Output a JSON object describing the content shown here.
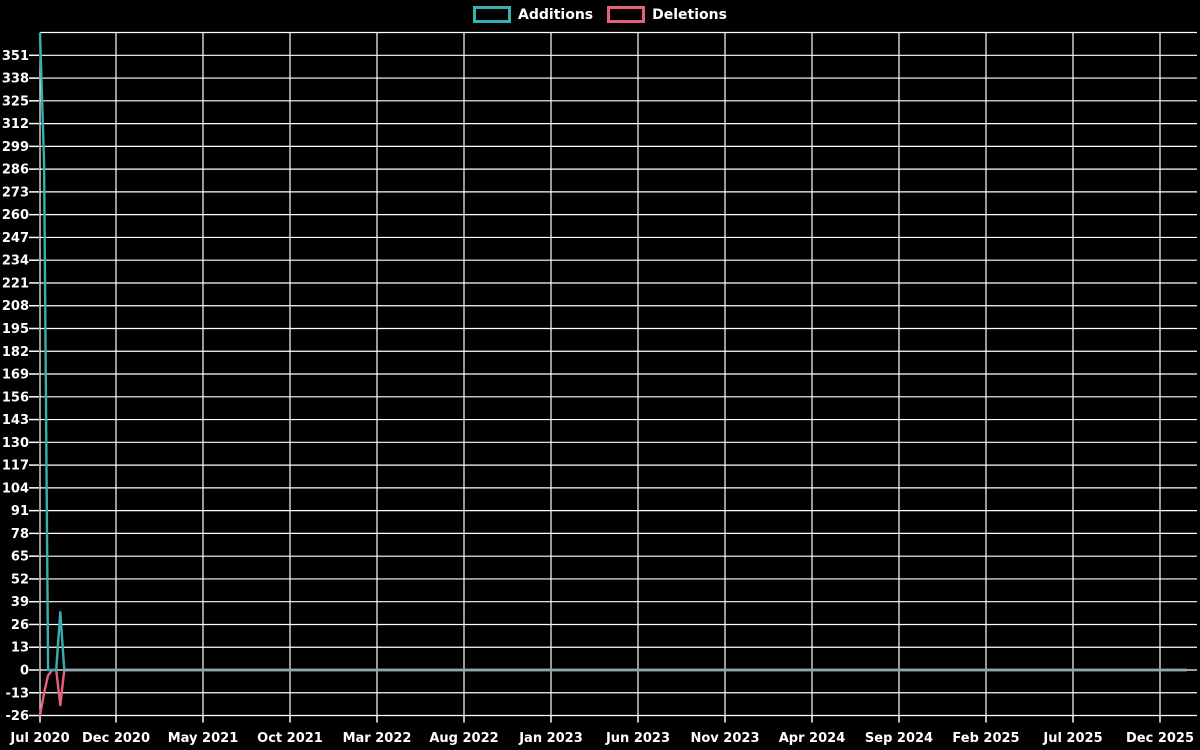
{
  "chart_data": {
    "type": "line",
    "title": "",
    "legend_position": "top-center",
    "background_color": "#000000",
    "grid_color": "#ffffff",
    "text_color": "#ffffff",
    "zero_overlap_color": "#8fa8ab",
    "x_tick_labels": [
      "Jul 2020",
      "Dec 2020",
      "May 2021",
      "Oct 2021",
      "Mar 2022",
      "Aug 2022",
      "Jan 2023",
      "Jun 2023",
      "Nov 2023",
      "Apr 2024",
      "Sep 2024",
      "Feb 2025",
      "Jul 2025",
      "Dec 2025"
    ],
    "y_tick_labels": [
      351,
      338,
      325,
      312,
      299,
      286,
      273,
      260,
      247,
      234,
      221,
      208,
      195,
      182,
      169,
      156,
      143,
      130,
      117,
      104,
      91,
      78,
      65,
      52,
      39,
      26,
      13,
      0,
      -13,
      -26
    ],
    "y_tick_step": 13,
    "ylim": [
      -29.5,
      364
    ],
    "x_start_week": "2020-07-12",
    "x_total_weeks": 283,
    "series": [
      {
        "name": "Additions",
        "color": "#3ab0ae",
        "baseline_value": 0,
        "nonzero_weeks": [
          {
            "week": "2020-07-12",
            "value": 364
          },
          {
            "week": "2020-07-19",
            "value": 289
          },
          {
            "week": "2020-08-16",
            "value": 33
          }
        ]
      },
      {
        "name": "Deletions",
        "color": "#e8607a",
        "baseline_value": 0,
        "nonzero_weeks": [
          {
            "week": "2020-07-12",
            "value": -26
          },
          {
            "week": "2020-07-19",
            "value": -13
          },
          {
            "week": "2020-07-26",
            "value": -3
          },
          {
            "week": "2020-08-16",
            "value": -20
          }
        ]
      }
    ],
    "note": "All weekly values other than the listed nonzero weeks are 0 between 2020-07-12 and 2025-12-14"
  }
}
